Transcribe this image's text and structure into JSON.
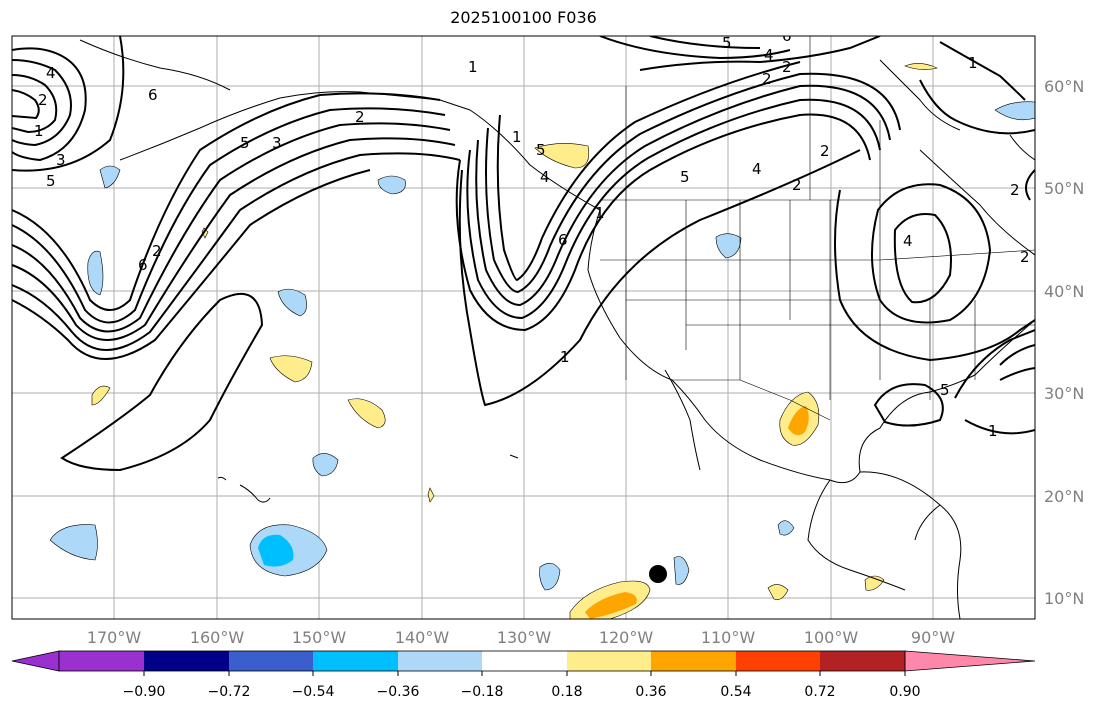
{
  "title": "2025100100 F036",
  "lon_labels": [
    "170°W",
    "160°W",
    "150°W",
    "140°W",
    "130°W",
    "120°W",
    "110°W",
    "100°W",
    "90°W"
  ],
  "lat_labels": [
    "60°N",
    "50°N",
    "40°N",
    "30°N",
    "20°N",
    "10°N"
  ],
  "colorbar": {
    "ticks": [
      "−0.90",
      "−0.72",
      "−0.54",
      "−0.36",
      "−0.18",
      "0.18",
      "0.36",
      "0.54",
      "0.72",
      "0.90"
    ],
    "colors": [
      "#9b30d0",
      "#000088",
      "#3a5fcd",
      "#00bfff",
      "#add8f8",
      "#ffffff",
      "#ffec8b",
      "#ffa500",
      "#ff4000",
      "#b22222",
      "#ff88aa"
    ]
  },
  "contour_labels": [
    "4",
    "2",
    "6",
    "1",
    "3",
    "5",
    "5",
    "3",
    "2",
    "2",
    "6",
    "1",
    "1",
    "5",
    "4",
    "6",
    "2",
    "2",
    "5",
    "4",
    "4",
    "2",
    "5",
    "1",
    "1",
    "6",
    "2",
    "4",
    "5",
    "1",
    "2",
    "1",
    "2"
  ],
  "colors": {
    "positive_light": "#ffec8b",
    "positive_mid": "#ffa500",
    "negative_light": "#add8f8",
    "negative_mid": "#00bfff",
    "marker": "#000000"
  }
}
